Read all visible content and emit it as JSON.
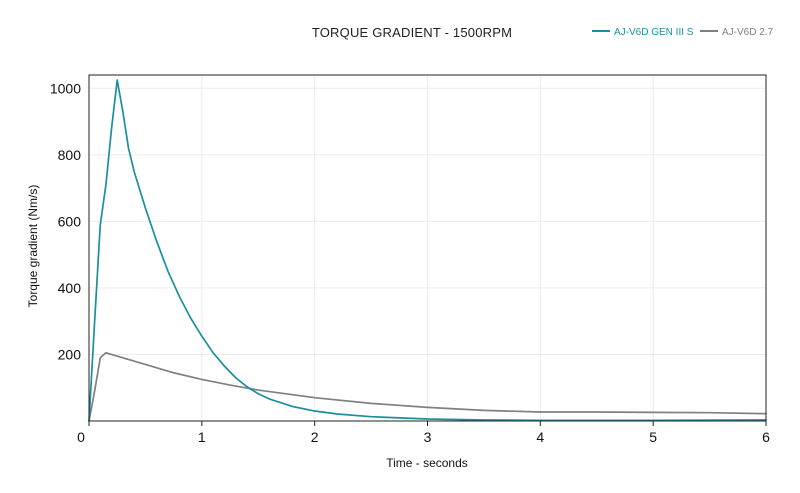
{
  "chart_data": {
    "type": "line",
    "title": "TORQUE GRADIENT - 1500RPM",
    "xlabel": "Time - seconds",
    "ylabel": "Torque gradient (Nm/s)",
    "xlim": [
      0,
      6
    ],
    "ylim": [
      0,
      1040
    ],
    "x_ticks": [
      "0",
      "1",
      "2",
      "3",
      "4",
      "5",
      "6"
    ],
    "y_ticks": [
      "200",
      "400",
      "600",
      "800",
      "1000"
    ],
    "grid": true,
    "legend_position": "top-right",
    "series": [
      {
        "name": "AJ-V6D GEN III S",
        "color": "#1a8f9e",
        "points": [
          [
            0,
            0
          ],
          [
            0.05,
            300
          ],
          [
            0.1,
            590
          ],
          [
            0.15,
            710
          ],
          [
            0.2,
            880
          ],
          [
            0.25,
            1025
          ],
          [
            0.3,
            930
          ],
          [
            0.35,
            820
          ],
          [
            0.4,
            750
          ],
          [
            0.5,
            640
          ],
          [
            0.6,
            540
          ],
          [
            0.7,
            450
          ],
          [
            0.8,
            375
          ],
          [
            0.9,
            310
          ],
          [
            1.0,
            255
          ],
          [
            1.1,
            205
          ],
          [
            1.2,
            165
          ],
          [
            1.3,
            130
          ],
          [
            1.4,
            103
          ],
          [
            1.5,
            82
          ],
          [
            1.6,
            66
          ],
          [
            1.8,
            44
          ],
          [
            2.0,
            30
          ],
          [
            2.2,
            21
          ],
          [
            2.5,
            13
          ],
          [
            3.0,
            6
          ],
          [
            3.5,
            3
          ],
          [
            4.0,
            2
          ],
          [
            5.0,
            2
          ],
          [
            6.0,
            3
          ]
        ]
      },
      {
        "name": "AJ-V6D 2.7",
        "color": "#808080",
        "points": [
          [
            0,
            0
          ],
          [
            0.05,
            90
          ],
          [
            0.1,
            190
          ],
          [
            0.15,
            205
          ],
          [
            0.3,
            190
          ],
          [
            0.5,
            170
          ],
          [
            0.75,
            145
          ],
          [
            1.0,
            125
          ],
          [
            1.25,
            108
          ],
          [
            1.5,
            93
          ],
          [
            2.0,
            70
          ],
          [
            2.5,
            53
          ],
          [
            3.0,
            41
          ],
          [
            3.5,
            32
          ],
          [
            4.0,
            27
          ],
          [
            4.5,
            27
          ],
          [
            5.0,
            26
          ],
          [
            5.5,
            25
          ],
          [
            6.0,
            22
          ]
        ]
      }
    ]
  }
}
